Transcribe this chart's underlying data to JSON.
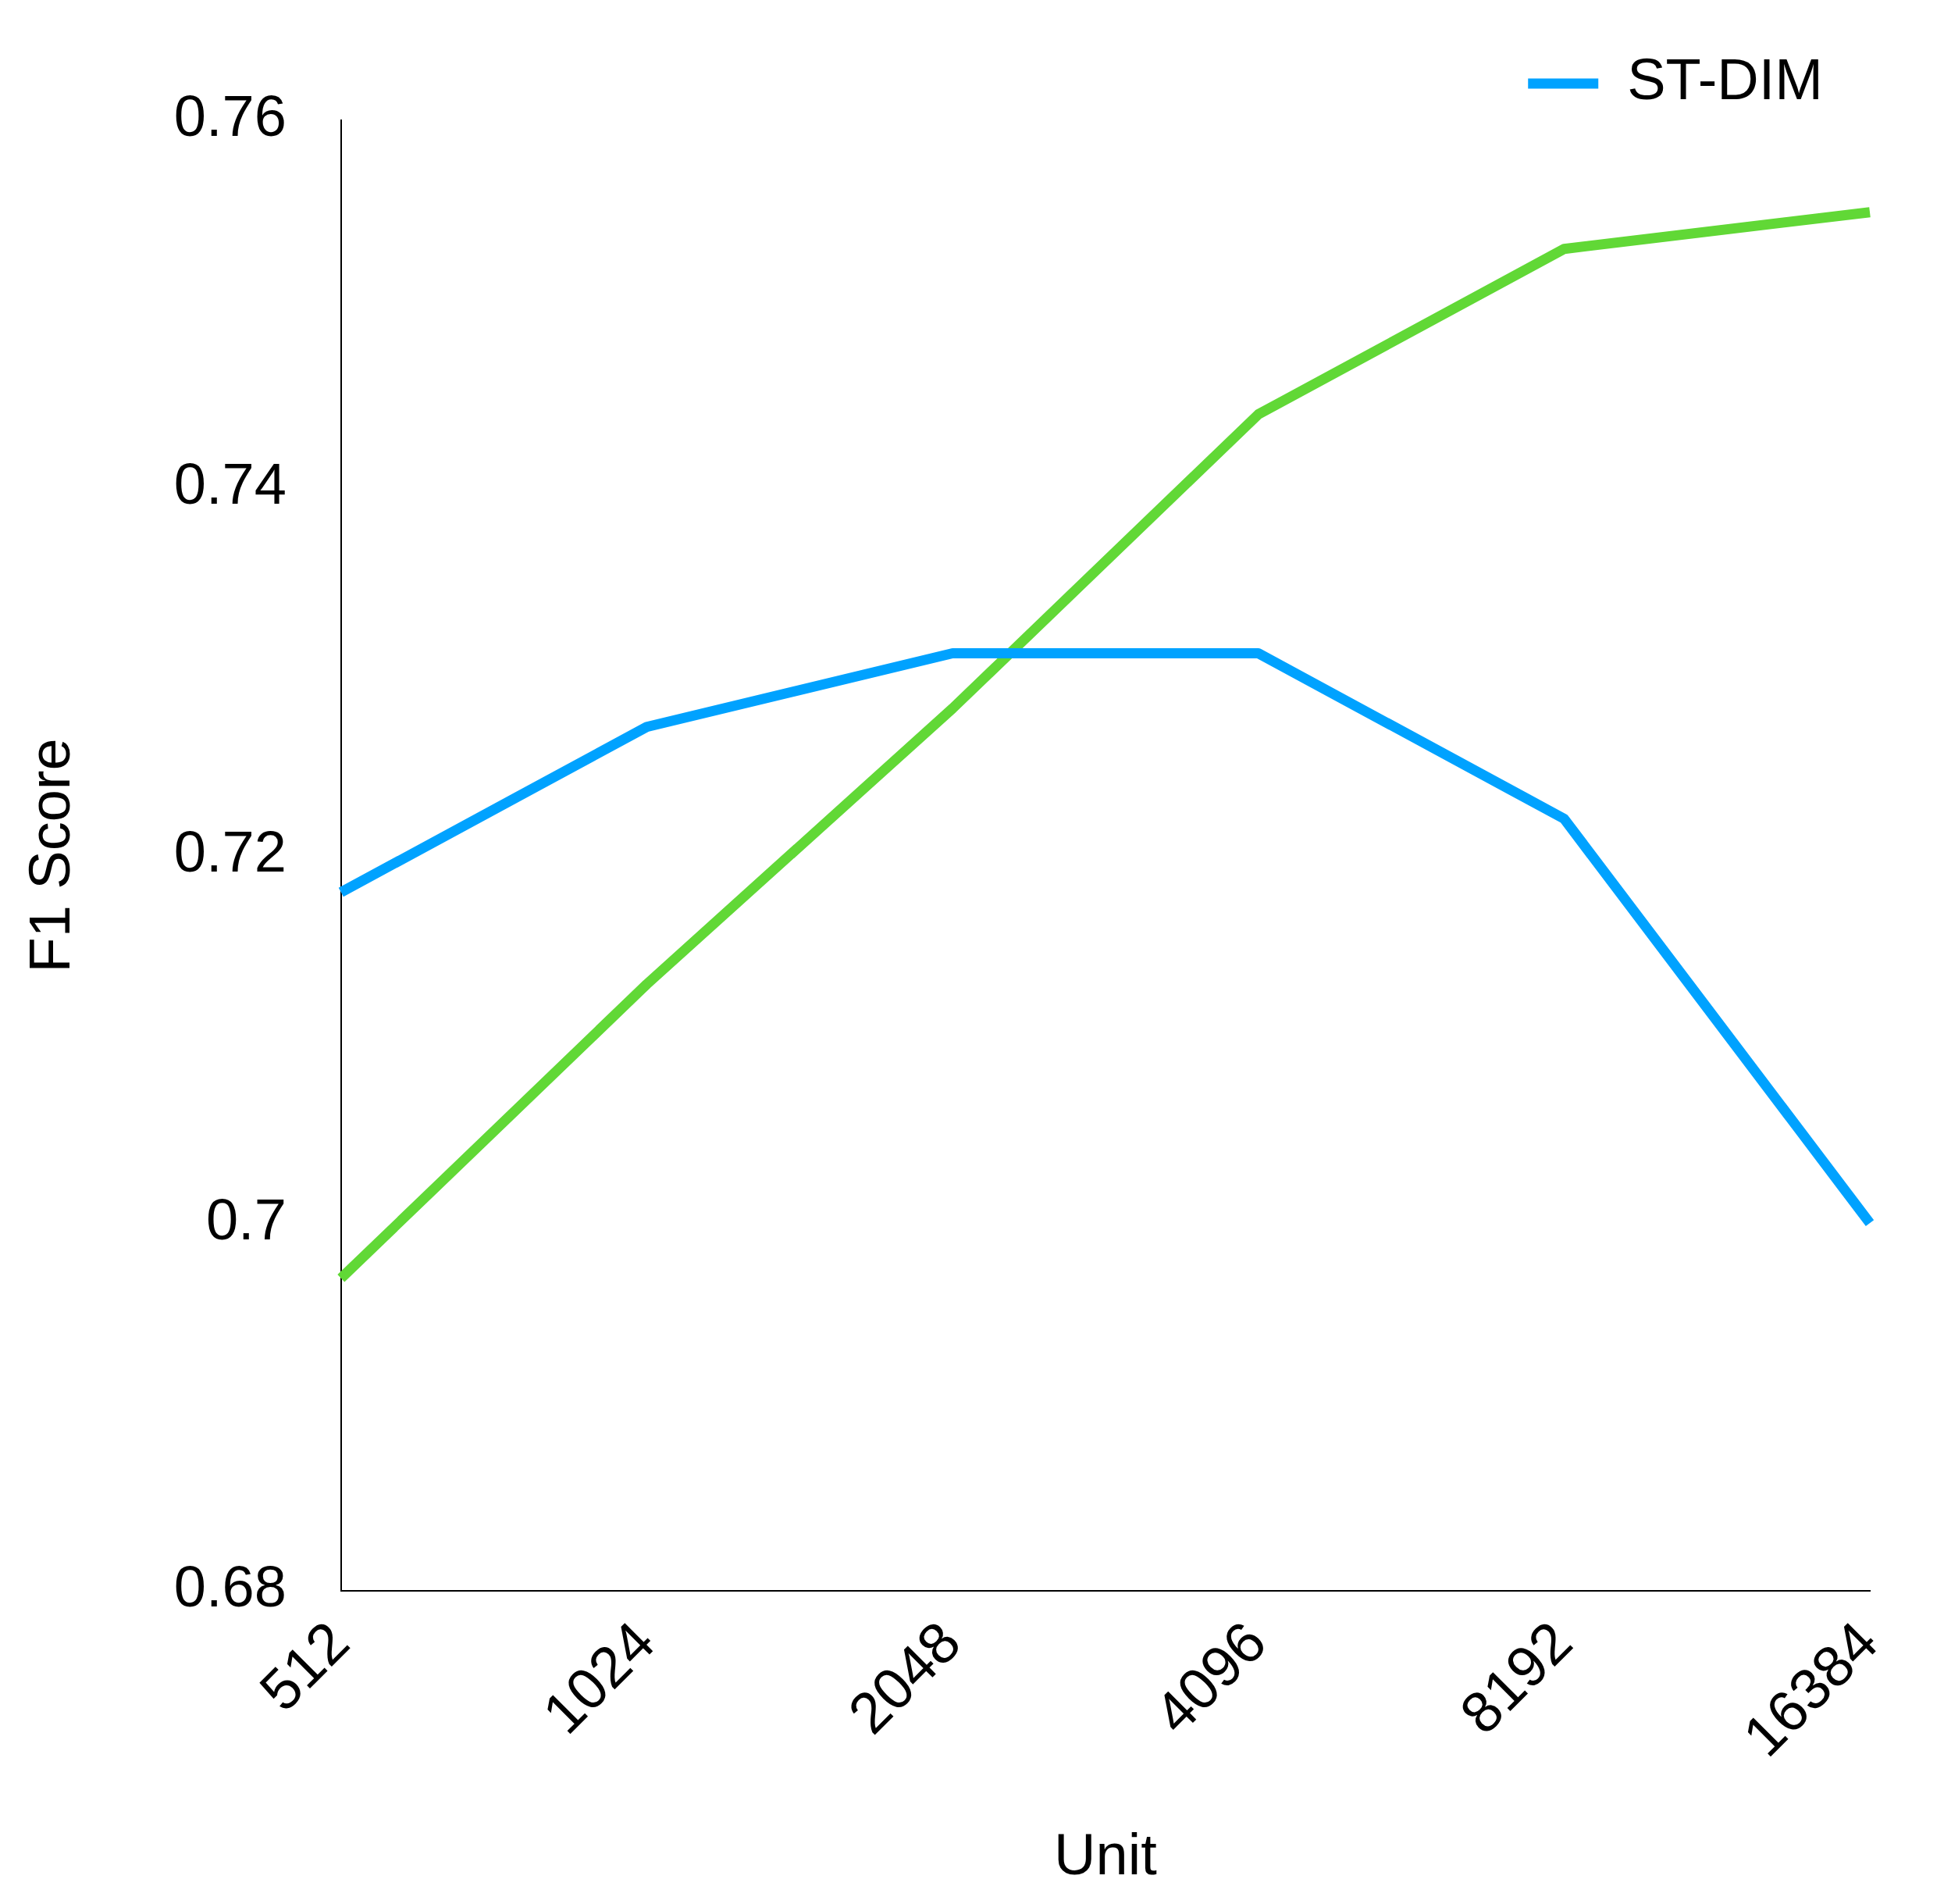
{
  "chart_data": {
    "type": "line",
    "xlabel": "Unit",
    "ylabel": "F1 Score",
    "categories": [
      "512",
      "1024",
      "2048",
      "4096",
      "8192",
      "16384"
    ],
    "series": [
      {
        "name": "ST-DIM",
        "color": "#00a2ff",
        "values": [
          0.718,
          0.727,
          0.731,
          0.731,
          0.722,
          0.7
        ]
      },
      {
        "color": "#61d836",
        "values": [
          0.697,
          0.713,
          0.728,
          0.744,
          0.753,
          0.755
        ]
      }
    ],
    "ylim": [
      0.68,
      0.76
    ],
    "yticks": [
      0.68,
      0.7,
      0.72,
      0.74,
      0.76
    ],
    "grid": false,
    "legend": "top right",
    "marker": "none",
    "line_style": "solid"
  }
}
